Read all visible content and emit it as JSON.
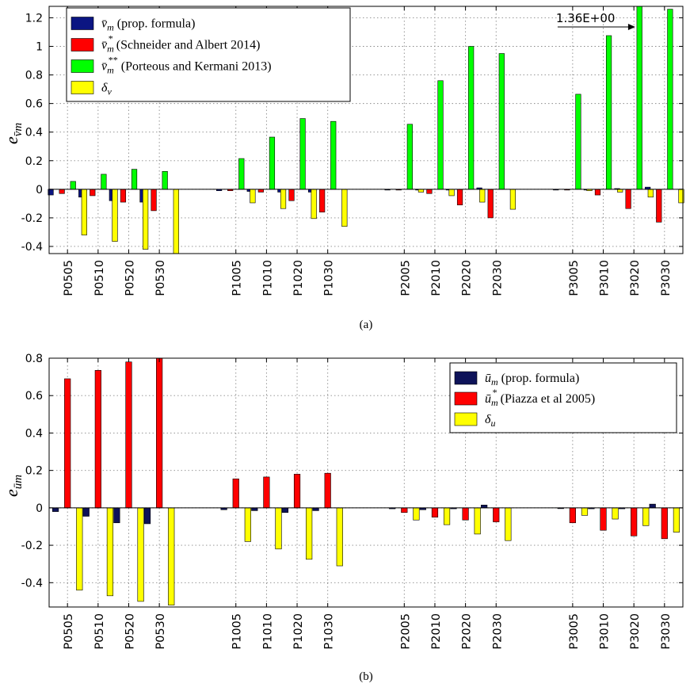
{
  "colors": {
    "blue": "#0b1582",
    "blue_bottom": "#0e1359",
    "red": "#ff0000",
    "green": "#00ff00",
    "yellow": "#ffff00"
  },
  "chart_data": [
    {
      "type": "bar",
      "caption": "(a)",
      "ylabel_main": "e",
      "ylabel_sub": "v̄m",
      "ylim": [
        -0.45,
        1.28
      ],
      "yticks": [
        -0.4,
        -0.2,
        0,
        0.2,
        0.4,
        0.6,
        0.8,
        1,
        1.2
      ],
      "ytick_labels": [
        "-0.4",
        "-0.2",
        "0",
        "0.2",
        "0.4",
        "0.6",
        "0.8",
        "1",
        "1.2"
      ],
      "grid": true,
      "legend_position": "top-left",
      "categories": [
        "P0505",
        "P0510",
        "P0520",
        "P0530",
        "P1005",
        "P1010",
        "P1020",
        "P1030",
        "P2005",
        "P2010",
        "P2020",
        "P2030",
        "P3005",
        "P3010",
        "P3020",
        "P3030"
      ],
      "series": [
        {
          "name_symbol": "v̄",
          "name_sub": "m",
          "name_text": "(prop. formula)",
          "color_key": "blue",
          "values": [
            -0.04,
            -0.055,
            -0.08,
            -0.09,
            -0.01,
            -0.015,
            -0.02,
            -0.02,
            -0.005,
            -0.005,
            -0.005,
            0.01,
            -0.005,
            -0.005,
            0.005,
            0.015
          ]
        },
        {
          "name_symbol": "v̄",
          "name_sub": "m",
          "name_sup": "*",
          "name_text": "(Schneider and Albert 2014)",
          "color_key": "red",
          "values": [
            -0.03,
            -0.045,
            -0.09,
            -0.15,
            -0.01,
            -0.02,
            -0.08,
            -0.16,
            -0.005,
            -0.03,
            -0.11,
            -0.2,
            -0.005,
            -0.04,
            -0.135,
            -0.23
          ]
        },
        {
          "name_symbol": "v̄",
          "name_sub": "m",
          "name_sup": "**",
          "name_text": "(Porteous and Kermani 2013)",
          "color_key": "green",
          "values": [
            0.055,
            0.105,
            0.14,
            0.125,
            0.215,
            0.365,
            0.495,
            0.475,
            0.455,
            0.76,
            1.0,
            0.95,
            0.665,
            1.075,
            1.36,
            1.26
          ]
        },
        {
          "name_symbol": "δ",
          "name_sub": "v",
          "name_text": "",
          "color_key": "yellow",
          "values": [
            -0.32,
            -0.365,
            -0.42,
            -0.45,
            -0.095,
            -0.135,
            -0.205,
            -0.26,
            -0.02,
            -0.045,
            -0.09,
            -0.14,
            -0.01,
            -0.02,
            -0.055,
            -0.095
          ]
        }
      ],
      "annotation": {
        "text": "1.36E+00",
        "category": "P3020",
        "series": 2
      }
    },
    {
      "type": "bar",
      "caption": "(b)",
      "ylabel_main": "e",
      "ylabel_sub": "ūm",
      "ylim": [
        -0.53,
        0.8
      ],
      "yticks": [
        -0.4,
        -0.2,
        0,
        0.2,
        0.4,
        0.6,
        0.8
      ],
      "ytick_labels": [
        "-0.4",
        "-0.2",
        "0",
        "0.2",
        "0.4",
        "0.6",
        "0.8"
      ],
      "grid": true,
      "legend_position": "top-right",
      "categories": [
        "P0505",
        "P0510",
        "P0520",
        "P0530",
        "P1005",
        "P1010",
        "P1020",
        "P1030",
        "P2005",
        "P2010",
        "P2020",
        "P2030",
        "P3005",
        "P3010",
        "P3020",
        "P3030"
      ],
      "series": [
        {
          "name_symbol": "ū",
          "name_sub": "m",
          "name_text": "(prop. formula)",
          "color_key": "blue_bottom",
          "values": [
            -0.02,
            -0.045,
            -0.08,
            -0.085,
            -0.01,
            -0.015,
            -0.025,
            -0.015,
            -0.005,
            -0.01,
            -0.005,
            0.015,
            -0.002,
            -0.005,
            -0.005,
            0.02
          ]
        },
        {
          "name_symbol": "ū",
          "name_sub": "m",
          "name_sup": "*",
          "name_text": "(Piazza et al 2005)",
          "color_key": "red",
          "values": [
            0.69,
            0.735,
            0.78,
            0.8,
            0.155,
            0.165,
            0.18,
            0.185,
            -0.025,
            -0.05,
            -0.065,
            -0.075,
            -0.08,
            -0.12,
            -0.15,
            -0.165
          ]
        },
        {
          "name_symbol": "δ",
          "name_sub": "u",
          "name_text": "",
          "color_key": "yellow",
          "values": [
            -0.44,
            -0.47,
            -0.5,
            -0.52,
            -0.18,
            -0.22,
            -0.275,
            -0.31,
            -0.065,
            -0.09,
            -0.14,
            -0.175,
            -0.04,
            -0.06,
            -0.095,
            -0.13
          ]
        }
      ]
    }
  ]
}
